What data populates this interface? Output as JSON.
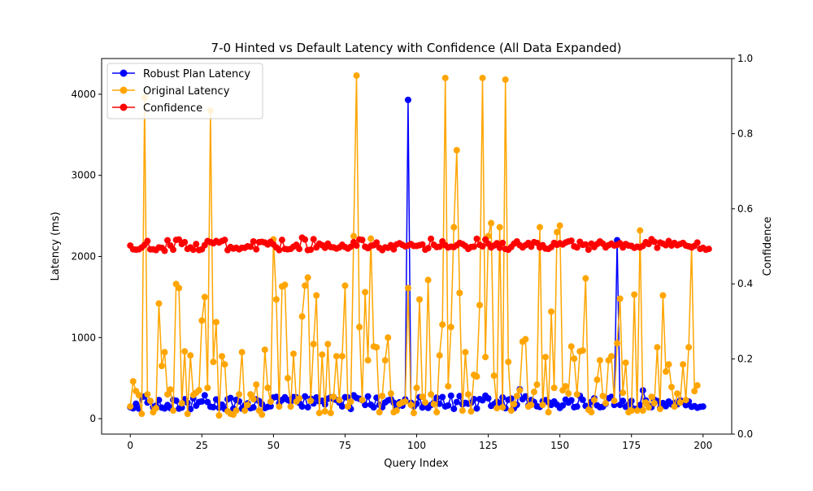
{
  "chart_data": {
    "type": "line",
    "title": "7-0 Hinted vs Default Latency with Confidence (All Data Expanded)",
    "xlabel": "Query Index",
    "ylabel": "Latency (ms)",
    "y2label": "Confidence",
    "xlim": [
      -10,
      210
    ],
    "ylim": [
      -190,
      4440
    ],
    "y2lim": [
      0,
      1
    ],
    "xticks": [
      0,
      25,
      50,
      75,
      100,
      125,
      150,
      175,
      200
    ],
    "yticks": [
      0,
      1000,
      2000,
      3000,
      4000
    ],
    "y2ticks": [
      0.0,
      0.2,
      0.4,
      0.6,
      0.8,
      1.0
    ],
    "y2tick_labels": [
      "0.0",
      "0.2",
      "0.4",
      "0.6",
      "0.8",
      "1.0"
    ],
    "legend_position": "top-left",
    "grid": false,
    "series": [
      {
        "name": "Robust Plan Latency",
        "axis": "left",
        "color": "#0000ff",
        "values": [
          141,
          128,
          184,
          124,
          266,
          273,
          199,
          217,
          143,
          161,
          230,
          137,
          126,
          168,
          130,
          231,
          222,
          124,
          137,
          240,
          196,
          118,
          252,
          160,
          206,
          212,
          288,
          205,
          148,
          142,
          237,
          134,
          173,
          120,
          239,
          255,
          124,
          232,
          214,
          124,
          163,
          188,
          129,
          139,
          238,
          216,
          179,
          131,
          146,
          153,
          261,
          268,
          190,
          231,
          264,
          230,
          210,
          266,
          262,
          195,
          150,
          275,
          141,
          247,
          188,
          262,
          213,
          221,
          177,
          246,
          264,
          241,
          231,
          198,
          151,
          265,
          261,
          120,
          289,
          257,
          246,
          227,
          169,
          275,
          172,
          140,
          259,
          170,
          141,
          200,
          226,
          240,
          197,
          130,
          202,
          160,
          238,
          3930,
          196,
          150,
          185,
          265,
          138,
          193,
          133,
          168,
          196,
          258,
          184,
          266,
          151,
          163,
          284,
          121,
          205,
          279,
          178,
          195,
          184,
          195,
          241,
          126,
          241,
          227,
          284,
          251,
          158,
          179,
          210,
          190,
          262,
          129,
          233,
          247,
          129,
          172,
          363,
          240,
          275,
          164,
          230,
          205,
          153,
          145,
          215,
          228,
          203,
          170,
          212,
          173,
          133,
          163,
          235,
          198,
          227,
          142,
          149,
          281,
          232,
          158,
          141,
          207,
          251,
          164,
          141,
          146,
          183,
          251,
          269,
          169,
          2200,
          170,
          220,
          147,
          175,
          219,
          121,
          123,
          168,
          349,
          225,
          163,
          143,
          234,
          217,
          132,
          192,
          154,
          211,
          176,
          195,
          177,
          226,
          207,
          167,
          211,
          147,
          155,
          135,
          146,
          150
        ]
      },
      {
        "name": "Original Latency",
        "axis": "left",
        "color": "#ffa500",
        "values": [
          150,
          460,
          340,
          290,
          60,
          3960,
          300,
          220,
          80,
          130,
          1420,
          650,
          820,
          300,
          360,
          100,
          1660,
          1610,
          190,
          830,
          60,
          780,
          290,
          320,
          350,
          1210,
          1500,
          380,
          3800,
          700,
          1190,
          40,
          770,
          670,
          90,
          60,
          50,
          100,
          300,
          820,
          100,
          170,
          300,
          240,
          420,
          100,
          50,
          850,
          380,
          210,
          2210,
          1470,
          150,
          1630,
          1650,
          500,
          150,
          800,
          210,
          250,
          1260,
          1640,
          1740,
          220,
          920,
          1520,
          70,
          790,
          90,
          920,
          70,
          270,
          770,
          230,
          770,
          1640,
          150,
          210,
          2250,
          4230,
          1130,
          230,
          1560,
          720,
          2220,
          890,
          880,
          80,
          280,
          720,
          1000,
          310,
          80,
          100,
          180,
          200,
          210,
          1610,
          170,
          70,
          380,
          1470,
          270,
          200,
          1710,
          300,
          180,
          80,
          780,
          1160,
          4200,
          400,
          1130,
          2360,
          3310,
          1550,
          100,
          820,
          300,
          90,
          540,
          520,
          1400,
          4200,
          760,
          2250,
          2410,
          530,
          130,
          2360,
          140,
          4180,
          700,
          100,
          180,
          280,
          350,
          950,
          980,
          150,
          170,
          330,
          420,
          2360,
          170,
          760,
          80,
          1320,
          380,
          2300,
          2380,
          350,
          400,
          310,
          890,
          740,
          300,
          830,
          840,
          1730,
          110,
          80,
          230,
          480,
          720,
          280,
          190,
          720,
          770,
          220,
          930,
          1480,
          320,
          690,
          80,
          100,
          1530,
          100,
          2320,
          100,
          200,
          140,
          270,
          190,
          880,
          120,
          1520,
          580,
          670,
          390,
          150,
          310,
          200,
          670,
          230,
          880,
          2120,
          340,
          410
        ]
      },
      {
        "name": "Confidence",
        "axis": "right",
        "color": "#ff0000",
        "values": [
          0.502,
          0.492,
          0.491,
          0.492,
          0.497,
          0.504,
          0.514,
          0.492,
          0.492,
          0.49,
          0.497,
          0.496,
          0.488,
          0.516,
          0.502,
          0.491,
          0.517,
          0.518,
          0.506,
          0.511,
          0.493,
          0.497,
          0.491,
          0.506,
          0.49,
          0.492,
          0.503,
          0.514,
          0.511,
          0.508,
          0.514,
          0.51,
          0.514,
          0.517,
          0.49,
          0.498,
          0.494,
          0.496,
          0.492,
          0.496,
          0.496,
          0.5,
          0.499,
          0.513,
          0.492,
          0.511,
          0.512,
          0.51,
          0.505,
          0.512,
          0.505,
          0.497,
          0.49,
          0.517,
          0.493,
          0.492,
          0.493,
          0.499,
          0.504,
          0.493,
          0.523,
          0.518,
          0.49,
          0.491,
          0.519,
          0.497,
          0.507,
          0.503,
          0.496,
          0.507,
          0.498,
          0.497,
          0.494,
          0.497,
          0.504,
          0.498,
          0.494,
          0.499,
          0.511,
          0.502,
          0.518,
          0.517,
          0.499,
          0.495,
          0.501,
          0.503,
          0.51,
          0.496,
          0.49,
          0.497,
          0.496,
          0.503,
          0.492,
          0.505,
          0.508,
          0.504,
          0.5,
          0.502,
          0.506,
          0.501,
          0.501,
          0.503,
          0.505,
          0.491,
          0.495,
          0.52,
          0.504,
          0.498,
          0.499,
          0.513,
          0.503,
          0.497,
          0.499,
          0.498,
          0.503,
          0.509,
          0.506,
          0.501,
          0.493,
          0.498,
          0.499,
          0.52,
          0.504,
          0.5,
          0.518,
          0.507,
          0.497,
          0.502,
          0.508,
          0.496,
          0.509,
          0.493,
          0.491,
          0.498,
          0.507,
          0.513,
          0.503,
          0.497,
          0.503,
          0.509,
          0.499,
          0.511,
          0.509,
          0.497,
          0.503,
          0.494,
          0.493,
          0.498,
          0.509,
          0.504,
          0.508,
          0.505,
          0.51,
          0.513,
          0.515,
          0.5,
          0.497,
          0.512,
          0.504,
          0.505,
          0.491,
          0.507,
          0.498,
          0.506,
          0.513,
          0.507,
          0.497,
          0.503,
          0.507,
          0.502,
          0.504,
          0.508,
          0.497,
          0.506,
          0.502,
          0.501,
          0.496,
          0.499,
          0.497,
          0.501,
          0.511,
          0.506,
          0.519,
          0.512,
          0.496,
          0.51,
          0.507,
          0.503,
          0.514,
          0.502,
          0.509,
          0.503,
          0.506,
          0.509,
          0.502,
          0.5,
          0.497,
          0.501,
          0.51,
          0.493,
          0.496,
          0.491,
          0.493
        ]
      }
    ]
  }
}
